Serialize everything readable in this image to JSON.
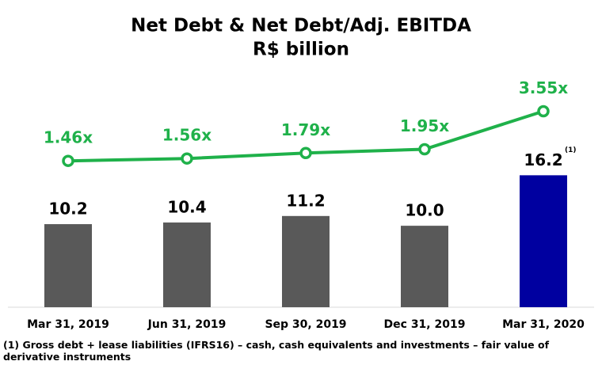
{
  "chart_data": {
    "type": "bar",
    "title": "Net Debt & Net Debt/Adj. EBITDA",
    "subtitle": "R$ billion",
    "categories": [
      "Mar 31, 2019",
      "Jun 31, 2019",
      "Sep 30, 2019",
      "Dec 31, 2019",
      "Mar 31, 2020"
    ],
    "series": [
      {
        "type": "bar",
        "colors": [
          "#595959",
          "#595959",
          "#595959",
          "#595959",
          "#0000a0"
        ],
        "values": [
          10.2,
          10.4,
          11.2,
          10.0,
          16.2
        ],
        "value_labels": [
          "10.2",
          "10.4",
          "11.2",
          "10.0",
          "16.2"
        ]
      },
      {
        "type": "line",
        "axis": "y2",
        "color": "#1fb14a",
        "values": [
          1.46,
          1.56,
          1.79,
          1.95,
          3.55
        ],
        "value_labels": [
          "1.46x",
          "1.56x",
          "1.79x",
          "1.95x",
          "3.55x"
        ]
      }
    ],
    "ylim": [
      0,
      28
    ],
    "y2lim": [
      -4.7,
      4.9
    ],
    "annotations": [
      "(1)"
    ],
    "footnote": "(1) Gross debt + lease liabilities (IFRS16) – cash, cash equivalents and investments – fair value of derivative instruments"
  }
}
